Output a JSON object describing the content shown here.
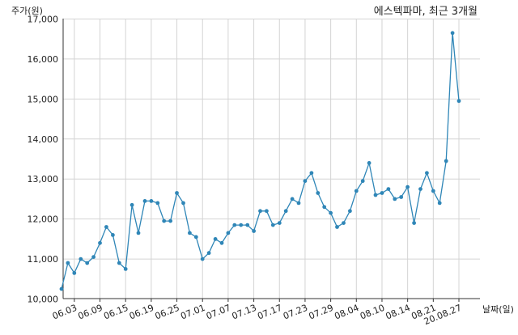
{
  "chart_data": {
    "type": "line",
    "title": "에스텍파마, 최근 3개월",
    "xlabel": "날짜(일)",
    "ylabel": "주가(원)",
    "ylim": [
      10000,
      17000
    ],
    "yticks": [
      10000,
      11000,
      12000,
      13000,
      14000,
      15000,
      16000,
      17000
    ],
    "ytick_labels": [
      "10,000",
      "11,000",
      "12,000",
      "13,000",
      "14,000",
      "15,000",
      "16,000",
      "17,000"
    ],
    "xtick_labels": [
      "06.03",
      "06.09",
      "06.15",
      "06.19",
      "06.25",
      "07.01",
      "07.07",
      "07.13",
      "07.17",
      "07.23",
      "07.29",
      "08.04",
      "08.10",
      "08.14",
      "08.21",
      "20.08.27"
    ],
    "xtick_indices": [
      2,
      6,
      10,
      14,
      18,
      22,
      26,
      30,
      34,
      38,
      42,
      46,
      50,
      54,
      58,
      62
    ],
    "grid": true,
    "color": "#2f86b7",
    "series": [
      {
        "values": [
          10250,
          10900,
          10650,
          11000,
          10900,
          11050,
          11400,
          11800,
          11600,
          10900,
          10750,
          12350,
          11650,
          12450,
          12450,
          12400,
          11950,
          11950,
          12650,
          12400,
          11650,
          11550,
          11000,
          11150,
          11500,
          11400,
          11650,
          11850,
          11850,
          11850,
          11700,
          12200,
          12200,
          11850,
          11900,
          12200,
          12500,
          12400,
          12950,
          13150,
          12650,
          12300,
          12150,
          11800,
          11900,
          12200,
          12700,
          12950,
          13400,
          12600,
          12650,
          12750,
          12500,
          12550,
          12800,
          11900,
          12750,
          13150,
          12700,
          12400,
          13450,
          16650,
          14950
        ]
      }
    ]
  }
}
